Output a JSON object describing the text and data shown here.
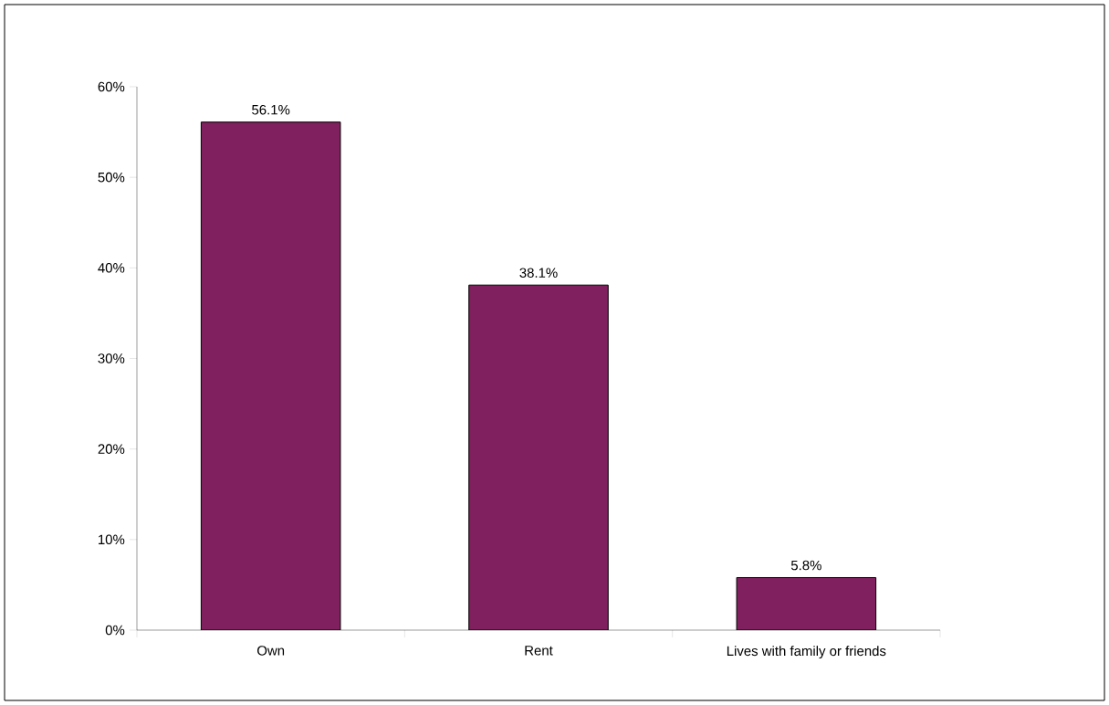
{
  "chart_data": {
    "type": "bar",
    "categories": [
      "Own",
      "Rent",
      "Lives with family or friends"
    ],
    "values": [
      56.1,
      38.1,
      5.8
    ],
    "value_labels": [
      "56.1%",
      "38.1%",
      "5.8%"
    ],
    "color": "#80205e",
    "ylim": [
      0,
      60
    ],
    "yticks": [
      {
        "value": 0,
        "label": "0%"
      },
      {
        "value": 10,
        "label": "10%"
      },
      {
        "value": 20,
        "label": "20%"
      },
      {
        "value": 30,
        "label": "30%"
      },
      {
        "value": 40,
        "label": "40%"
      },
      {
        "value": 50,
        "label": "50%"
      },
      {
        "value": 60,
        "label": "60%"
      }
    ]
  }
}
